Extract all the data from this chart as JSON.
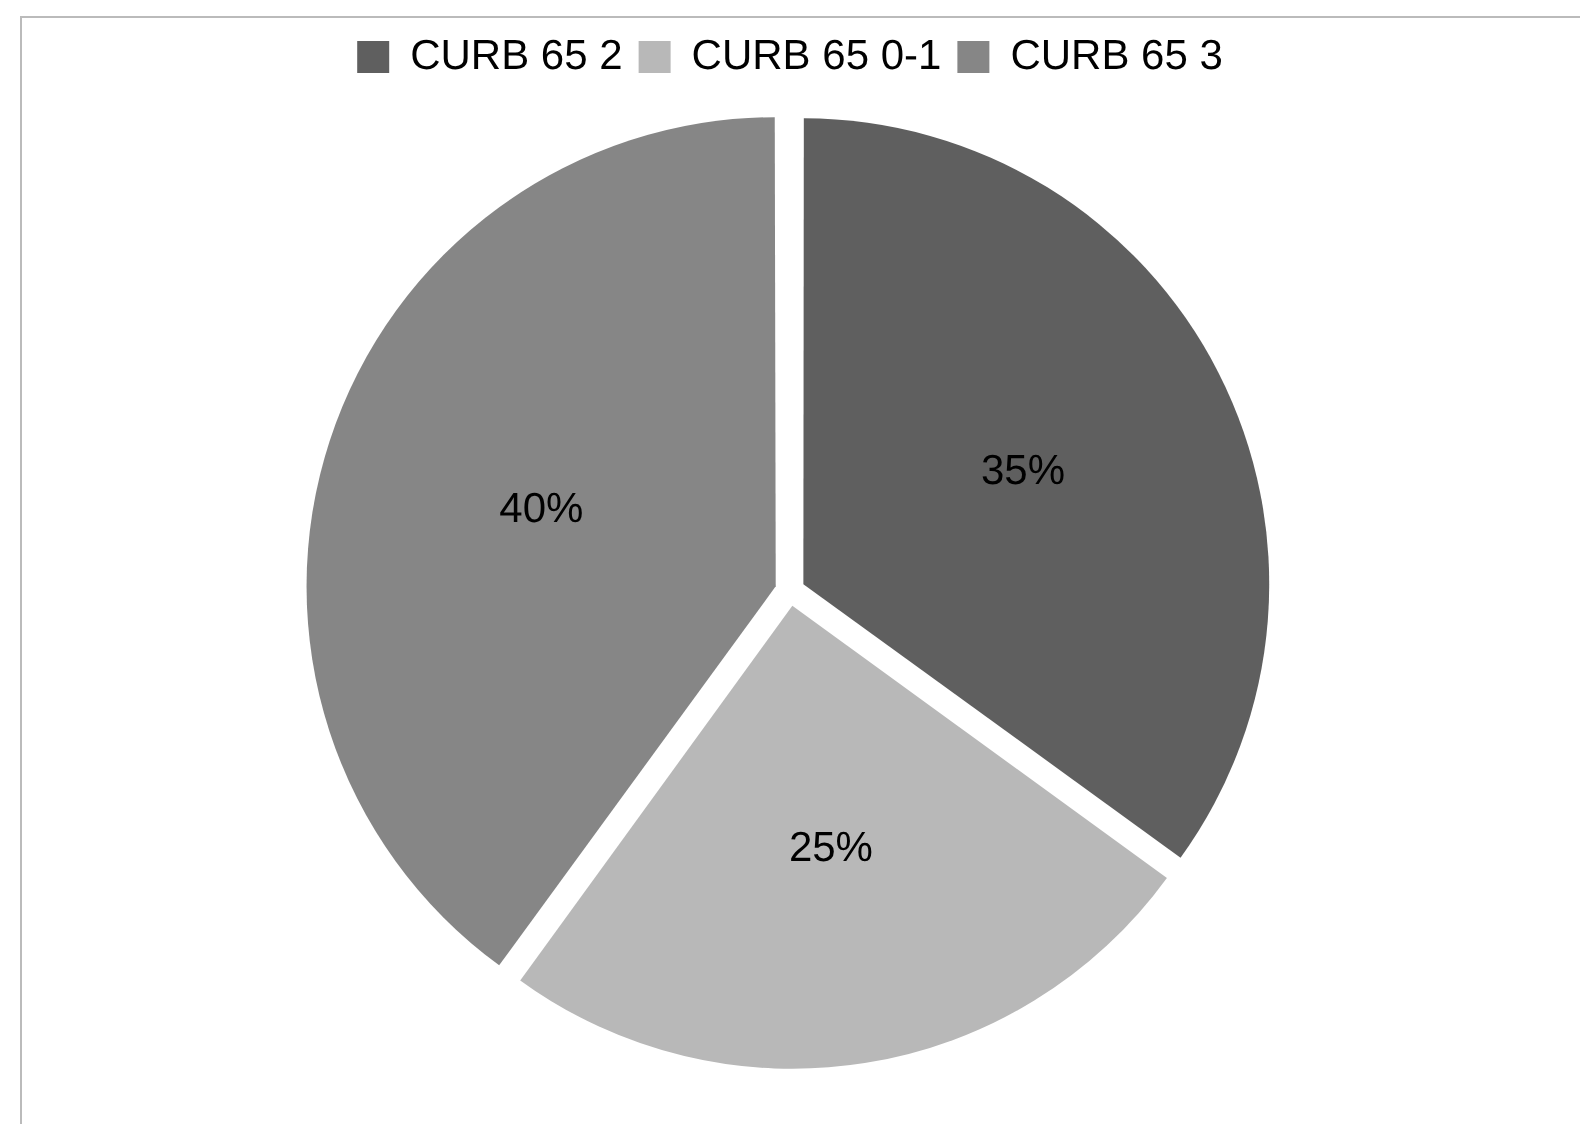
{
  "chart_data": {
    "type": "pie",
    "categories": [
      "CURB 65 2",
      "CURB 65 0-1",
      "CURB 65 3"
    ],
    "values": [
      35,
      25,
      40
    ],
    "colors": [
      "#5f5f5f",
      "#b8b8b8",
      "#868686"
    ],
    "value_labels": [
      "35%",
      "25%",
      "40%"
    ],
    "legend": "top"
  }
}
